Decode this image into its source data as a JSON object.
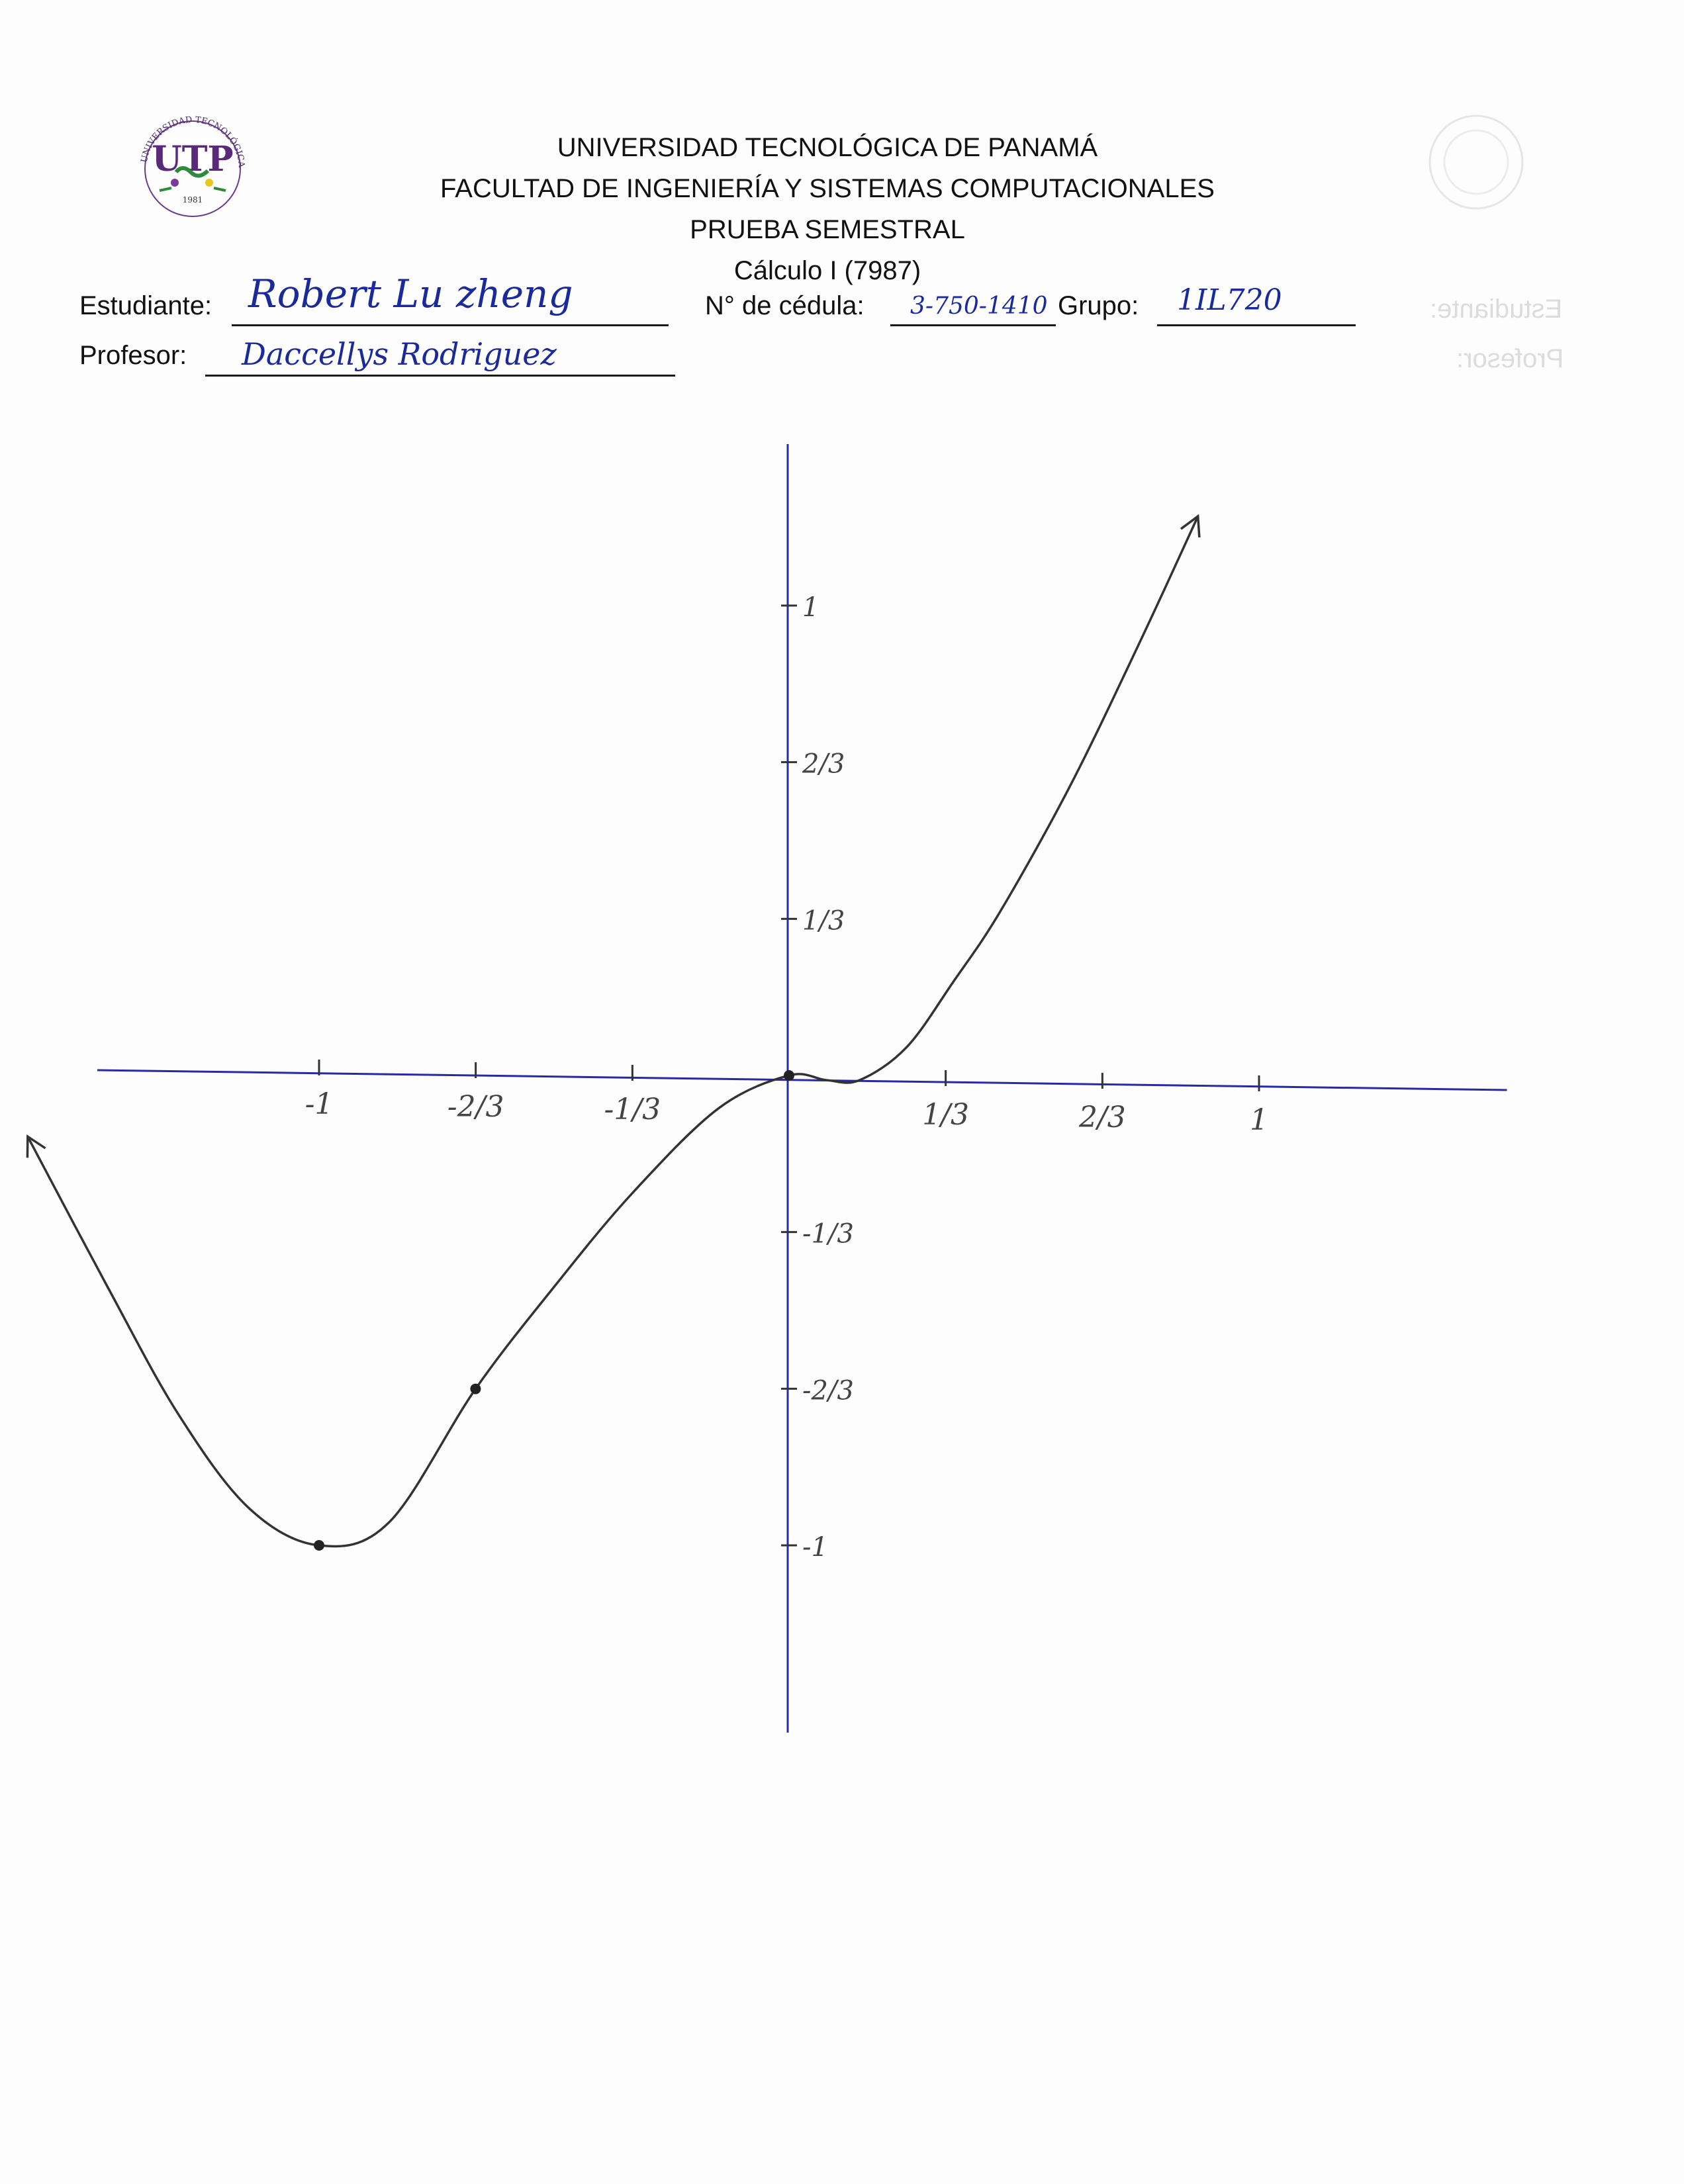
{
  "university": {
    "name": "UNIVERSIDAD TECNOLÓGICA DE PANAMÁ",
    "faculty": "FACULTAD DE INGENIERÍA Y SISTEMAS COMPUTACIONALES",
    "exam": "PRUEBA SEMESTRAL",
    "course": "Cálculo I (7987)"
  },
  "logo": {
    "ring_text_top": "UNIVERSIDAD TECNOLÓGICA DE PANAMÁ",
    "initials": "UTP",
    "year": "1981",
    "colors": {
      "purple": "#5a2a7a",
      "green": "#2e8b3a",
      "yellow": "#e8c81a"
    }
  },
  "form": {
    "student_label": "Estudiante:",
    "student_value": "Robert Lu zheng",
    "id_label": "N° de cédula:",
    "id_value": "3-750-1410",
    "group_label": "Grupo:",
    "group_value": "1IL720",
    "professor_label": "Profesor:",
    "professor_value": "Daccellys Rodriguez"
  },
  "chart_data": {
    "type": "line",
    "title": "",
    "xlabel": "",
    "ylabel": "",
    "xlim": [
      -1.5,
      1.45
    ],
    "ylim": [
      -1.3,
      1.4
    ],
    "x_ticks": [
      {
        "value": -1,
        "label": "-1"
      },
      {
        "value": -0.6667,
        "label": "-2/3"
      },
      {
        "value": -0.3333,
        "label": "-1/3"
      },
      {
        "value": 0.3333,
        "label": "1/3"
      },
      {
        "value": 0.6667,
        "label": "2/3"
      },
      {
        "value": 1,
        "label": "1"
      }
    ],
    "y_ticks": [
      {
        "value": 1,
        "label": "1"
      },
      {
        "value": 0.6667,
        "label": "2/3"
      },
      {
        "value": 0.3333,
        "label": "1/3"
      },
      {
        "value": -0.3333,
        "label": "-1/3"
      },
      {
        "value": -0.6667,
        "label": "-2/3"
      },
      {
        "value": -1,
        "label": "-1"
      }
    ],
    "series": [
      {
        "points": [
          [
            -1.62,
            -0.13
          ],
          [
            -1.45,
            -0.45
          ],
          [
            -1.3,
            -0.72
          ],
          [
            -1.15,
            -0.92
          ],
          [
            -1.0,
            -1.0
          ],
          [
            -0.85,
            -0.95
          ],
          [
            -0.667,
            -0.667
          ],
          [
            -0.5,
            -0.45
          ],
          [
            -0.333,
            -0.25
          ],
          [
            -0.15,
            -0.07
          ],
          [
            0.0,
            0.0
          ],
          [
            0.08,
            -0.01
          ],
          [
            0.15,
            -0.01
          ],
          [
            0.25,
            0.06
          ],
          [
            0.35,
            0.2
          ],
          [
            0.45,
            0.35
          ],
          [
            0.6,
            0.62
          ],
          [
            0.75,
            0.93
          ],
          [
            0.87,
            1.19
          ]
        ],
        "color": "#333333"
      }
    ],
    "marked_points": [
      [
        -1.0,
        -1.0
      ],
      [
        -0.667,
        -0.667
      ],
      [
        0.0,
        0.0
      ]
    ],
    "arrows": "both-ends",
    "axis_color": "#2a2aa0",
    "grid": false
  }
}
